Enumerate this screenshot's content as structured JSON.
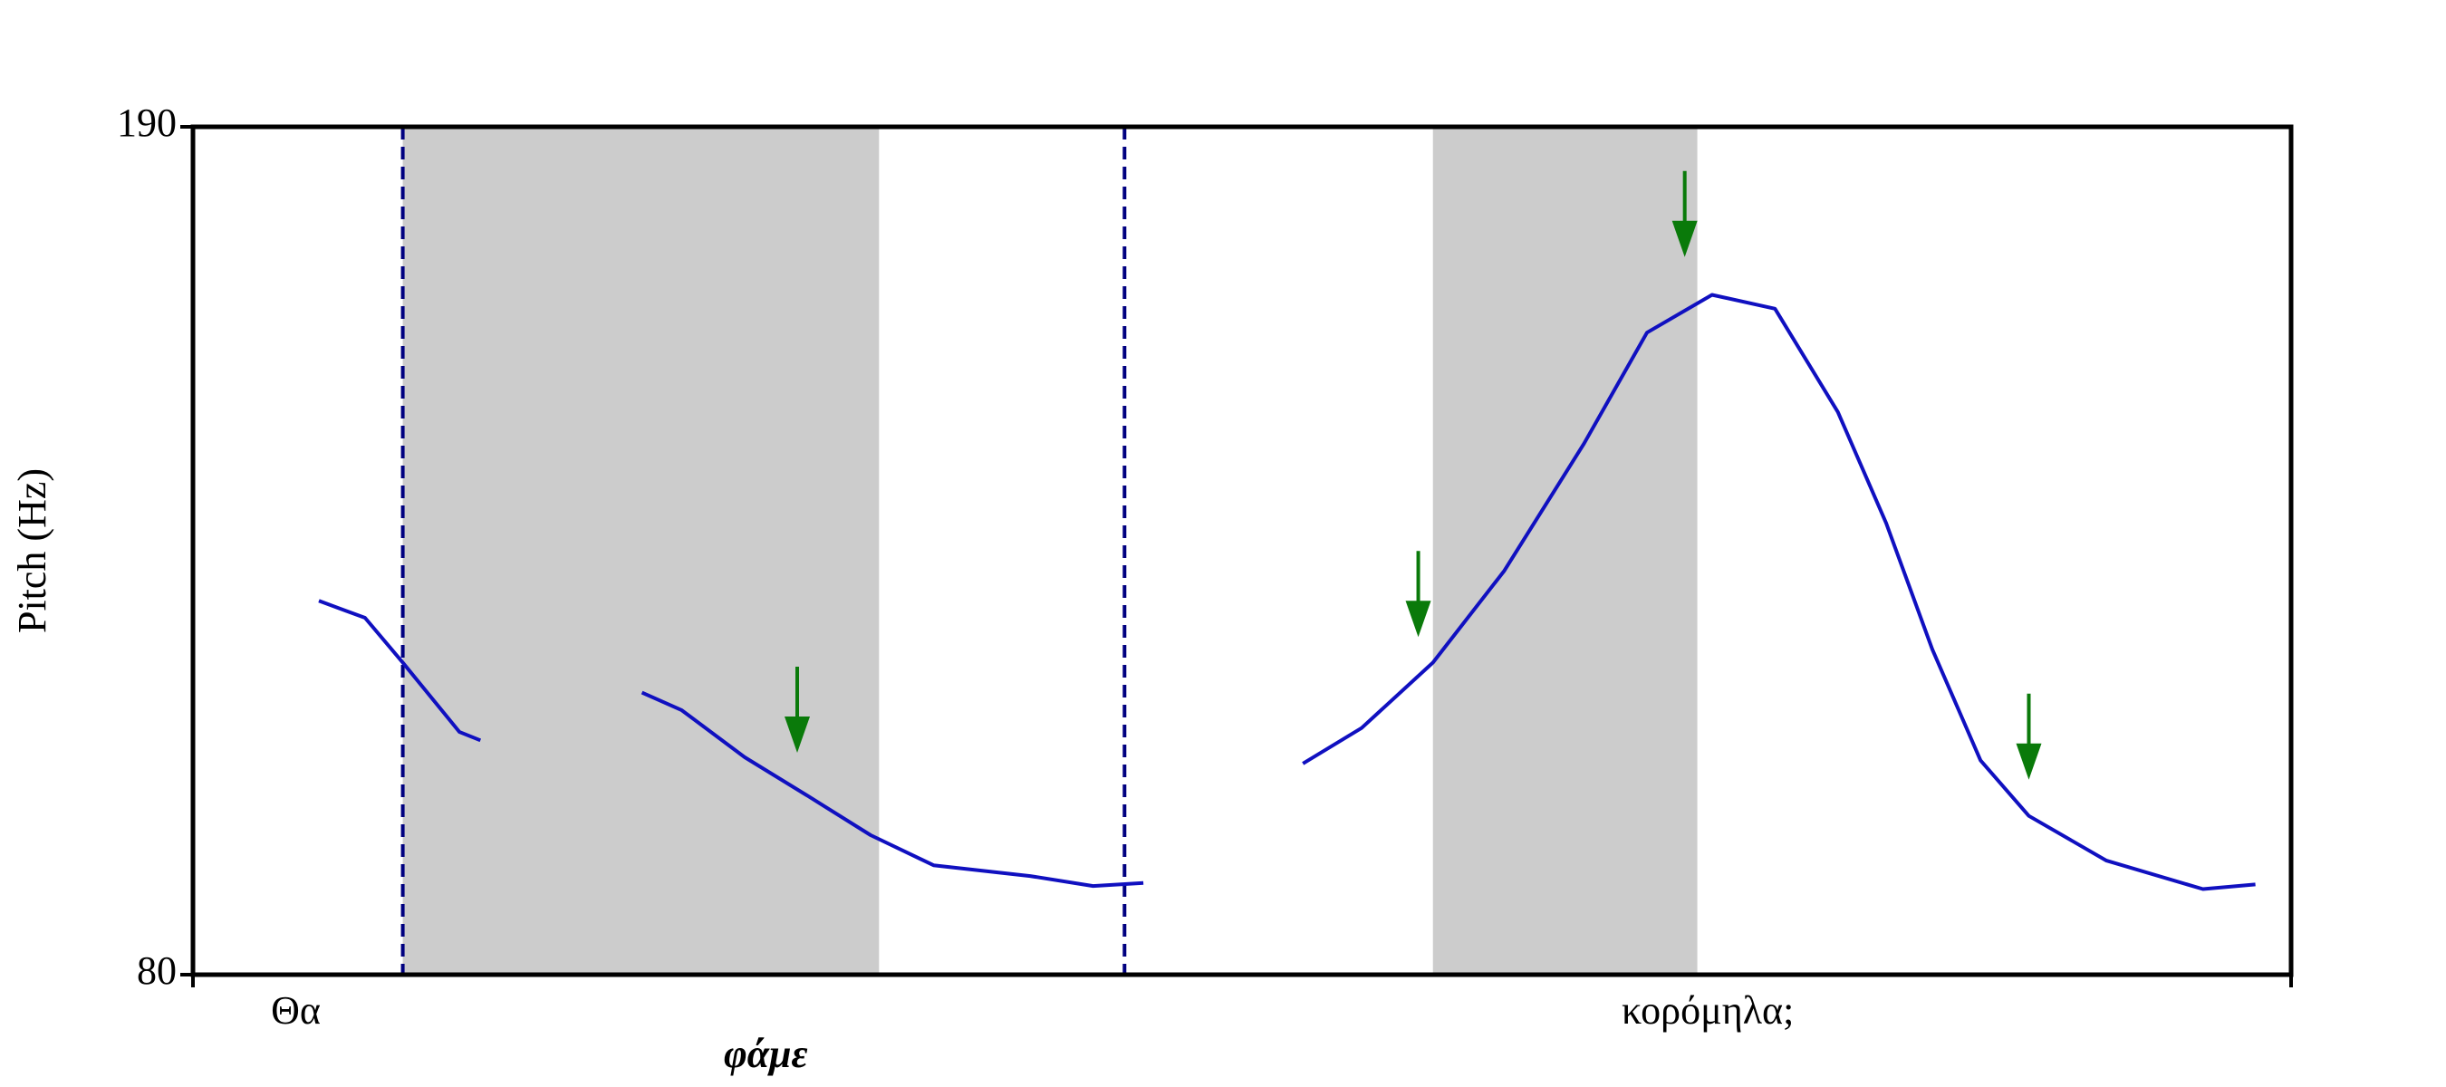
{
  "chart_data": {
    "type": "line",
    "y_label": "Pitch (Hz)",
    "ylim": [
      80,
      190
    ],
    "yticks": [
      80,
      190
    ],
    "xlim": [
      0,
      1
    ],
    "x": [
      0.06,
      0.082,
      0.1,
      0.127,
      0.137,
      0.175,
      0.214,
      0.233,
      0.263,
      0.293,
      0.323,
      0.353,
      0.399,
      0.429,
      0.453,
      0.49,
      0.529,
      0.557,
      0.591,
      0.625,
      0.663,
      0.693,
      0.724,
      0.754,
      0.784,
      0.807,
      0.829,
      0.852,
      0.875,
      0.912,
      0.958,
      0.983
    ],
    "values": [
      128.5,
      126.3,
      120.5,
      111.5,
      110.4,
      null,
      116.6,
      114.3,
      108.2,
      103.2,
      98.1,
      94.2,
      92.8,
      91.5,
      91.9,
      null,
      107.4,
      112.0,
      120.5,
      132.4,
      148.9,
      163.3,
      168.2,
      166.4,
      153.0,
      138.6,
      122.2,
      107.8,
      100.6,
      94.8,
      91.1,
      91.7
    ],
    "color": "#1010c0",
    "shaded": [
      [
        0.1,
        0.327
      ],
      [
        0.591,
        0.717
      ]
    ],
    "shade_color": "#cccccc",
    "boundaries": [
      0.1,
      0.444
    ],
    "boundary_color": "#000080",
    "arrows": [
      {
        "x": 0.288,
        "y": 108.8
      },
      {
        "x": 0.584,
        "y": 123.8
      },
      {
        "x": 0.711,
        "y": 173.1
      },
      {
        "x": 0.875,
        "y": 105.3
      }
    ],
    "arrow_color": "#0a7a0a",
    "words": [
      {
        "text": "Θα",
        "x": 0.049
      },
      {
        "text": "φάμε",
        "x": 0.273,
        "focus": true
      },
      {
        "text": "κορόμηλα;",
        "x": 0.722
      }
    ]
  }
}
